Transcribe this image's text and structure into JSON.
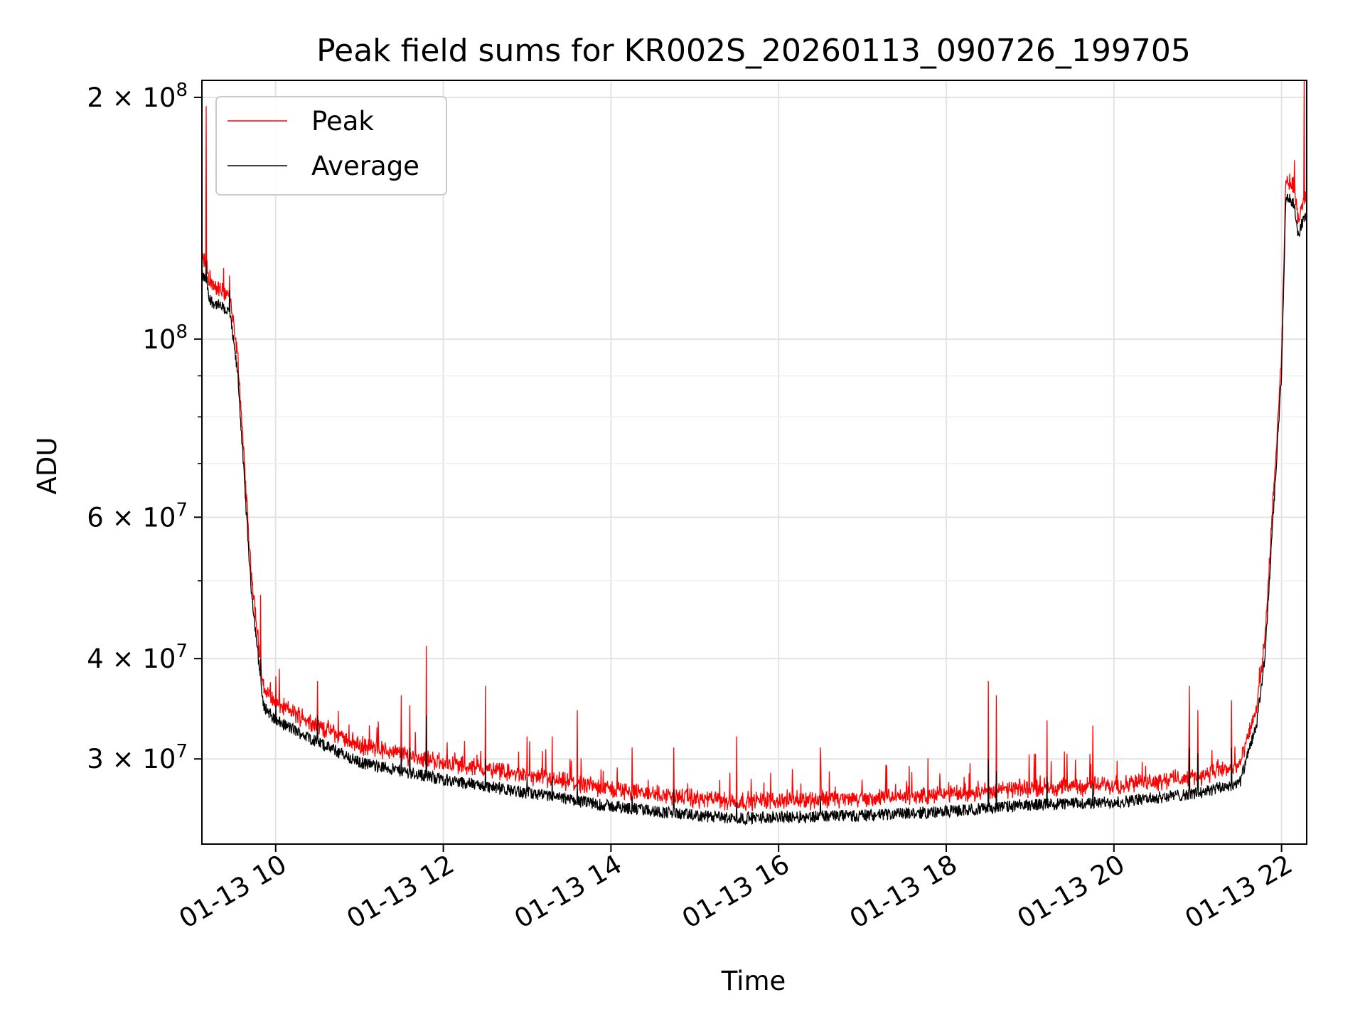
{
  "chart_data": {
    "type": "line",
    "title": "Peak field sums for KR002S_20260113_090726_199705",
    "xlabel": "Time",
    "ylabel": "ADU",
    "yscale": "log",
    "ylim": [
      23500000,
      210000000
    ],
    "xlim_hours": [
      9.12,
      22.3
    ],
    "grid": true,
    "legend_position": "top-left",
    "x_ticks": [
      {
        "value": 10,
        "label": "01-13 10"
      },
      {
        "value": 12,
        "label": "01-13 12"
      },
      {
        "value": 14,
        "label": "01-13 14"
      },
      {
        "value": 16,
        "label": "01-13 16"
      },
      {
        "value": 18,
        "label": "01-13 18"
      },
      {
        "value": 20,
        "label": "01-13 20"
      },
      {
        "value": 22,
        "label": "01-13 22"
      }
    ],
    "y_ticks": [
      {
        "value": 30000000,
        "base": "3",
        "exp": "7"
      },
      {
        "value": 40000000,
        "base": "4",
        "exp": "7"
      },
      {
        "value": 60000000,
        "base": "6",
        "exp": "7"
      },
      {
        "value": 100000000,
        "base": "",
        "exp": "8"
      },
      {
        "value": 200000000,
        "base": "2",
        "exp": "8"
      }
    ],
    "y_minor_ticks": [
      50000000,
      70000000,
      80000000,
      90000000
    ],
    "series": [
      {
        "name": "Peak",
        "color": "#ff0000"
      },
      {
        "name": "Average",
        "color": "#000000"
      }
    ],
    "baseline_hours": [
      9.12,
      9.18,
      9.2,
      9.45,
      9.55,
      9.7,
      9.85,
      10.0,
      10.5,
      11.0,
      12.0,
      13.0,
      14.0,
      15.0,
      15.5,
      16.0,
      17.0,
      18.0,
      19.0,
      20.0,
      21.0,
      21.5,
      21.7,
      21.8,
      21.9,
      22.0,
      22.05,
      22.15,
      22.2,
      22.25,
      22.3
    ],
    "average_baseline": [
      120000000,
      118000000,
      112000000,
      108000000,
      90000000,
      50000000,
      35000000,
      33500000,
      31500000,
      29700000,
      28300000,
      27200000,
      26200000,
      25500000,
      25300000,
      25400000,
      25500000,
      25800000,
      26300000,
      26500000,
      27200000,
      28000000,
      33000000,
      40000000,
      60000000,
      90000000,
      150000000,
      148000000,
      135000000,
      140000000,
      142000000
    ],
    "peak_offset": 1.035,
    "spikes": [
      {
        "t": 9.17,
        "peak": 195000000,
        "avg": 125000000
      },
      {
        "t": 9.45,
        "peak": 120000000,
        "avg": 115000000
      },
      {
        "t": 9.82,
        "peak": 48000000,
        "avg": 40000000
      },
      {
        "t": 10.0,
        "peak": 38000000,
        "avg": 35000000
      },
      {
        "t": 10.5,
        "peak": 37500000,
        "avg": 34000000
      },
      {
        "t": 11.5,
        "peak": 36000000,
        "avg": 31000000
      },
      {
        "t": 11.6,
        "peak": 35000000,
        "avg": 31000000
      },
      {
        "t": 11.8,
        "peak": 41500000,
        "avg": 34000000
      },
      {
        "t": 12.5,
        "peak": 37000000,
        "avg": 30000000
      },
      {
        "t": 13.0,
        "peak": 32000000,
        "avg": 28500000
      },
      {
        "t": 13.3,
        "peak": 32000000,
        "avg": 28500000
      },
      {
        "t": 13.6,
        "peak": 34500000,
        "avg": 28000000
      },
      {
        "t": 14.25,
        "peak": 31000000,
        "avg": 27000000
      },
      {
        "t": 14.75,
        "peak": 31000000,
        "avg": 27500000
      },
      {
        "t": 15.5,
        "peak": 32000000,
        "avg": 26500000
      },
      {
        "t": 16.5,
        "peak": 31000000,
        "avg": 27000000
      },
      {
        "t": 18.5,
        "peak": 37500000,
        "avg": 30000000
      },
      {
        "t": 18.6,
        "peak": 36000000,
        "avg": 29000000
      },
      {
        "t": 19.2,
        "peak": 33500000,
        "avg": 28500000
      },
      {
        "t": 19.75,
        "peak": 33000000,
        "avg": 28000000
      },
      {
        "t": 20.9,
        "peak": 37000000,
        "avg": 31000000
      },
      {
        "t": 21.0,
        "peak": 34500000,
        "avg": 30500000
      },
      {
        "t": 21.4,
        "peak": 35500000,
        "avg": 31000000
      },
      {
        "t": 22.27,
        "peak": 210000000,
        "avg": 140000000
      }
    ]
  }
}
